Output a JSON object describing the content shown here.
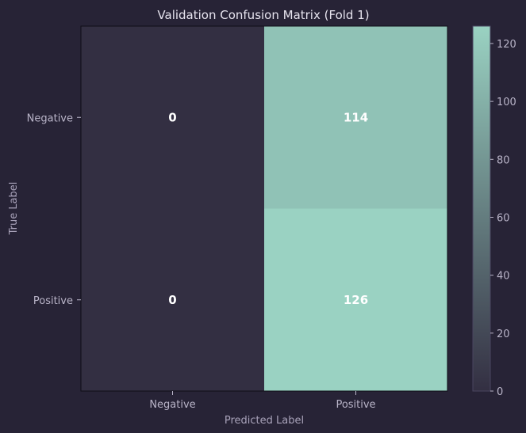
{
  "chart_data": {
    "type": "heatmap",
    "title": "Validation Confusion Matrix (Fold 1)",
    "xlabel": "Predicted Label",
    "ylabel": "True Label",
    "x_categories": [
      "Negative",
      "Positive"
    ],
    "y_categories": [
      "Negative",
      "Positive"
    ],
    "matrix": [
      [
        0,
        114
      ],
      [
        0,
        126
      ]
    ],
    "colorbar": {
      "range": [
        0,
        126
      ],
      "ticks": [
        "0",
        "20",
        "40",
        "60",
        "80",
        "100",
        "120"
      ],
      "colors": [
        "#332f42",
        "#9ad2c2"
      ]
    }
  }
}
